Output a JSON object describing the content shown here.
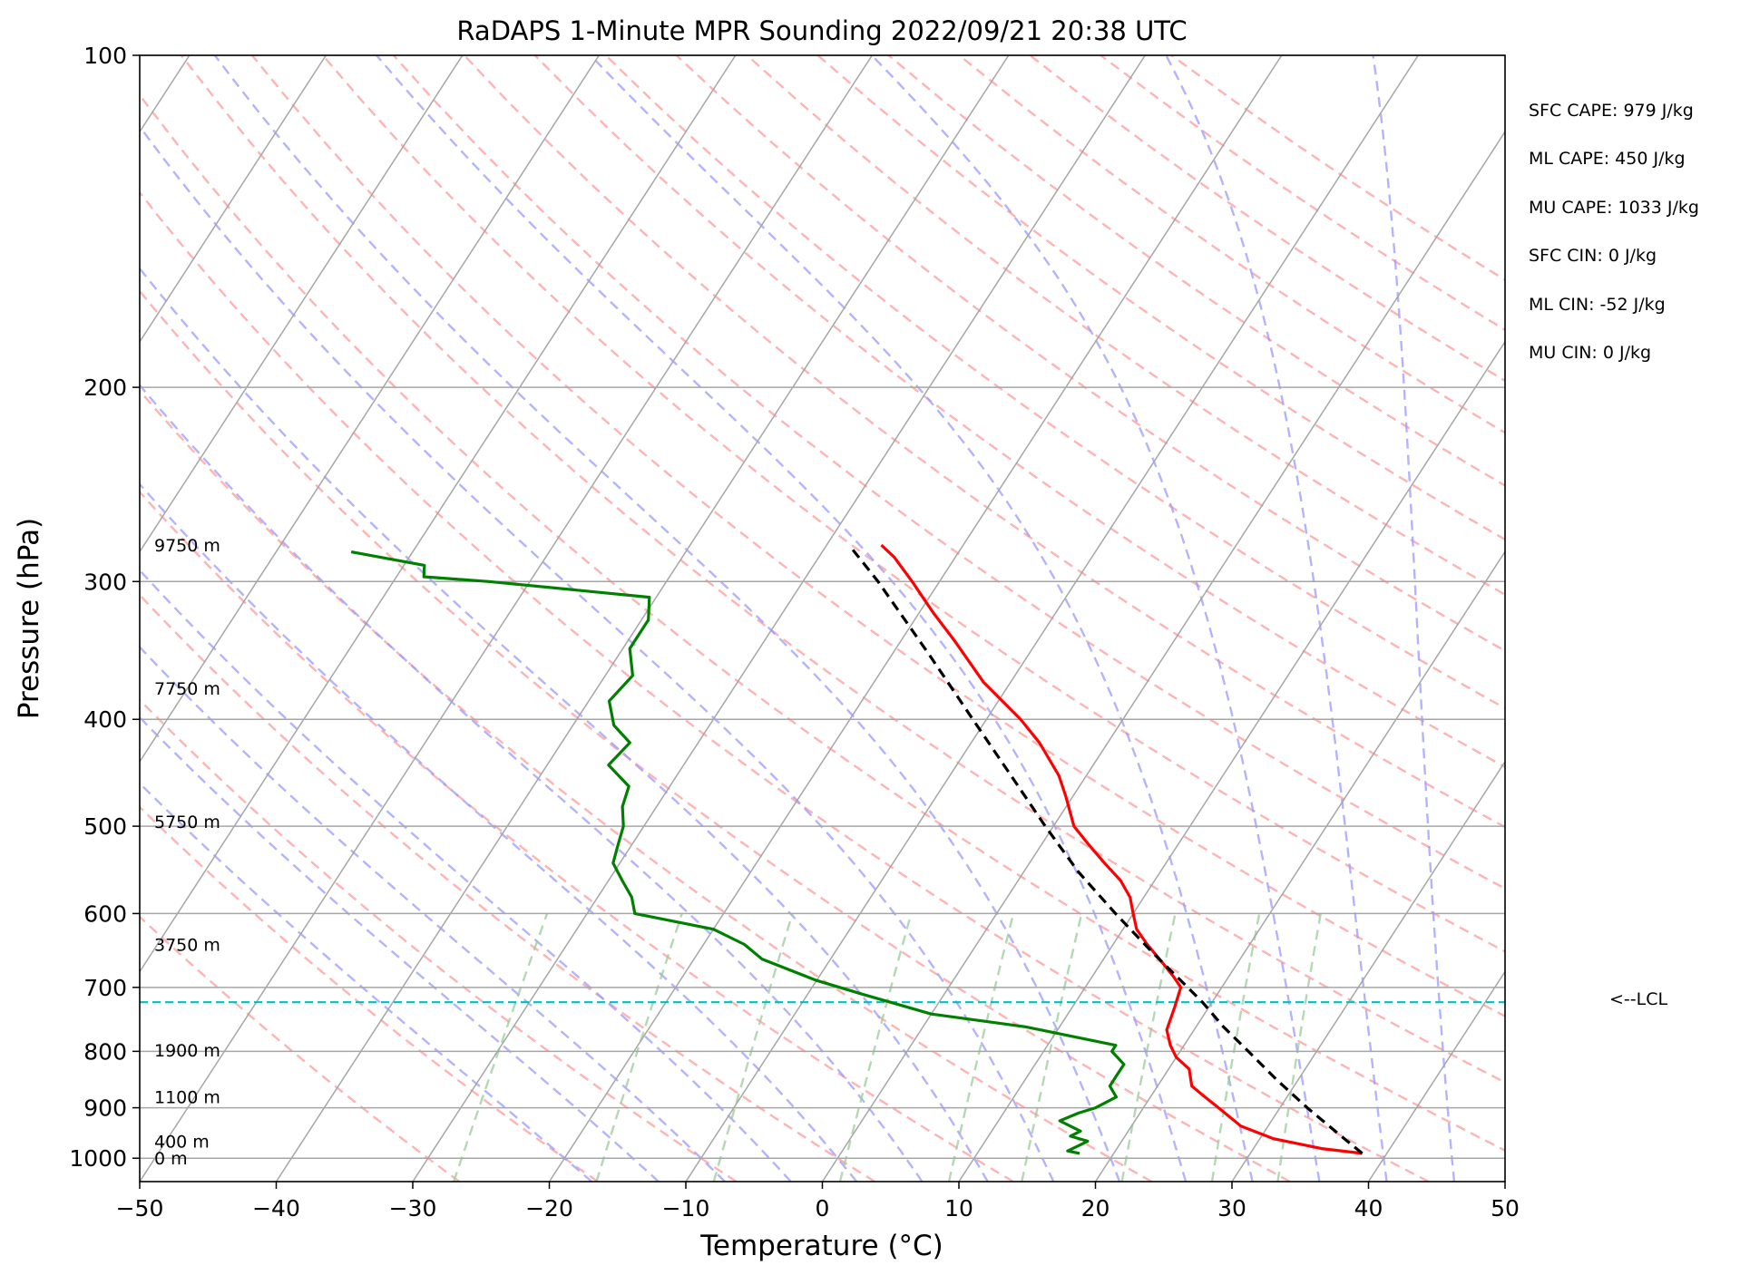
{
  "chart_data": {
    "type": "line",
    "title": "RaDAPS 1-Minute MPR Sounding 2022/09/21 20:38 UTC",
    "xlabel": "Temperature (°C)",
    "ylabel": "Pressure (hPa)",
    "xlim": [
      -50,
      50
    ],
    "ylim": [
      1050,
      100
    ],
    "y_scale": "log",
    "skew": "skew-T",
    "x_ticks": [
      "−50",
      "−40",
      "−30",
      "−20",
      "−10",
      "0",
      "10",
      "20",
      "30",
      "40",
      "50"
    ],
    "y_ticks": [
      {
        "p": 100,
        "label": "100"
      },
      {
        "p": 200,
        "label": "200"
      },
      {
        "p": 300,
        "label": "300"
      },
      {
        "p": 400,
        "label": "400"
      },
      {
        "p": 500,
        "label": "500"
      },
      {
        "p": 600,
        "label": "600"
      },
      {
        "p": 700,
        "label": "700"
      },
      {
        "p": 800,
        "label": "800"
      },
      {
        "p": 900,
        "label": "900"
      },
      {
        "p": 1000,
        "label": "1000"
      }
    ],
    "grid": true,
    "height_labels": [
      {
        "p": 278,
        "text": "9750 m"
      },
      {
        "p": 375,
        "text": "7750 m"
      },
      {
        "p": 495,
        "text": "5750 m"
      },
      {
        "p": 640,
        "text": "3750 m"
      },
      {
        "p": 798,
        "text": "1900 m"
      },
      {
        "p": 880,
        "text": "1100 m"
      },
      {
        "p": 965,
        "text": "400 m"
      },
      {
        "p": 1000,
        "text": "0 m"
      }
    ],
    "series": [
      {
        "key": "temperature",
        "color": "#ff0000",
        "points": [
          [
            990,
            38.2
          ],
          [
            980,
            35
          ],
          [
            960,
            31
          ],
          [
            935,
            28
          ],
          [
            900,
            25.5
          ],
          [
            880,
            24
          ],
          [
            860,
            22.5
          ],
          [
            830,
            21.5
          ],
          [
            810,
            20
          ],
          [
            790,
            19
          ],
          [
            765,
            18
          ],
          [
            730,
            17.5
          ],
          [
            700,
            17
          ],
          [
            685,
            16
          ],
          [
            665,
            14.5
          ],
          [
            640,
            12.5
          ],
          [
            620,
            11
          ],
          [
            600,
            10
          ],
          [
            580,
            9
          ],
          [
            560,
            7.5
          ],
          [
            540,
            5.5
          ],
          [
            520,
            3.5
          ],
          [
            500,
            1.5
          ],
          [
            470,
            -0.5
          ],
          [
            450,
            -2
          ],
          [
            420,
            -5
          ],
          [
            400,
            -7.5
          ],
          [
            370,
            -12
          ],
          [
            340,
            -16
          ],
          [
            320,
            -19
          ],
          [
            300,
            -22
          ],
          [
            285,
            -24.5
          ],
          [
            278,
            -26
          ]
        ]
      },
      {
        "key": "dewpoint",
        "color": "#008000",
        "points": [
          [
            990,
            17.5
          ],
          [
            985,
            16.5
          ],
          [
            975,
            17
          ],
          [
            965,
            17.5
          ],
          [
            955,
            16
          ],
          [
            945,
            16.5
          ],
          [
            935,
            15.5
          ],
          [
            925,
            14.5
          ],
          [
            910,
            15.5
          ],
          [
            900,
            16.5
          ],
          [
            880,
            17.5
          ],
          [
            870,
            17
          ],
          [
            860,
            16.5
          ],
          [
            840,
            16.5
          ],
          [
            822,
            16.5
          ],
          [
            800,
            15
          ],
          [
            790,
            15
          ],
          [
            760,
            7.5
          ],
          [
            740,
            0
          ],
          [
            710,
            -6
          ],
          [
            690,
            -10
          ],
          [
            660,
            -15
          ],
          [
            640,
            -17
          ],
          [
            620,
            -20
          ],
          [
            600,
            -26.5
          ],
          [
            580,
            -27.5
          ],
          [
            560,
            -29
          ],
          [
            540,
            -30.5
          ],
          [
            520,
            -31
          ],
          [
            500,
            -31.5
          ],
          [
            480,
            -32.5
          ],
          [
            460,
            -33
          ],
          [
            440,
            -35.5
          ],
          [
            420,
            -35
          ],
          [
            405,
            -37
          ],
          [
            385,
            -38.5
          ],
          [
            365,
            -38
          ],
          [
            345,
            -39.5
          ],
          [
            325,
            -39.5
          ],
          [
            310,
            -40.5
          ],
          [
            300,
            -53
          ],
          [
            297,
            -58
          ],
          [
            290,
            -58.5
          ],
          [
            282,
            -64.5
          ]
        ]
      },
      {
        "key": "parcel",
        "color": "#000000",
        "style": "dashed",
        "points": [
          [
            990,
            38.2
          ],
          [
            950,
            35.5
          ],
          [
            900,
            32
          ],
          [
            850,
            28.5
          ],
          [
            800,
            25
          ],
          [
            760,
            22
          ],
          [
            722,
            19.3
          ],
          [
            700,
            17.5
          ],
          [
            650,
            13.2
          ],
          [
            600,
            8.7
          ],
          [
            550,
            4
          ],
          [
            500,
            -0.6
          ],
          [
            450,
            -5.5
          ],
          [
            400,
            -11
          ],
          [
            350,
            -17.2
          ],
          [
            300,
            -24.5
          ],
          [
            280,
            -28
          ]
        ]
      }
    ],
    "lcl": {
      "p": 722,
      "label": "<--LCL"
    }
  },
  "stats": [
    "SFC CAPE: 979 J/kg",
    "ML CAPE: 450 J/kg",
    "MU CAPE: 1033 J/kg",
    "SFC CIN: 0 J/kg",
    "ML CIN: -52 J/kg",
    "MU CIN: 0 J/kg"
  ],
  "colors": {
    "dry_adiabat": "#ff9999",
    "moist_adiabat": "#9999ff",
    "mixing_ratio": "#99cc99",
    "lcl_line": "#00bfbf",
    "grid": "#a6a6a6"
  }
}
